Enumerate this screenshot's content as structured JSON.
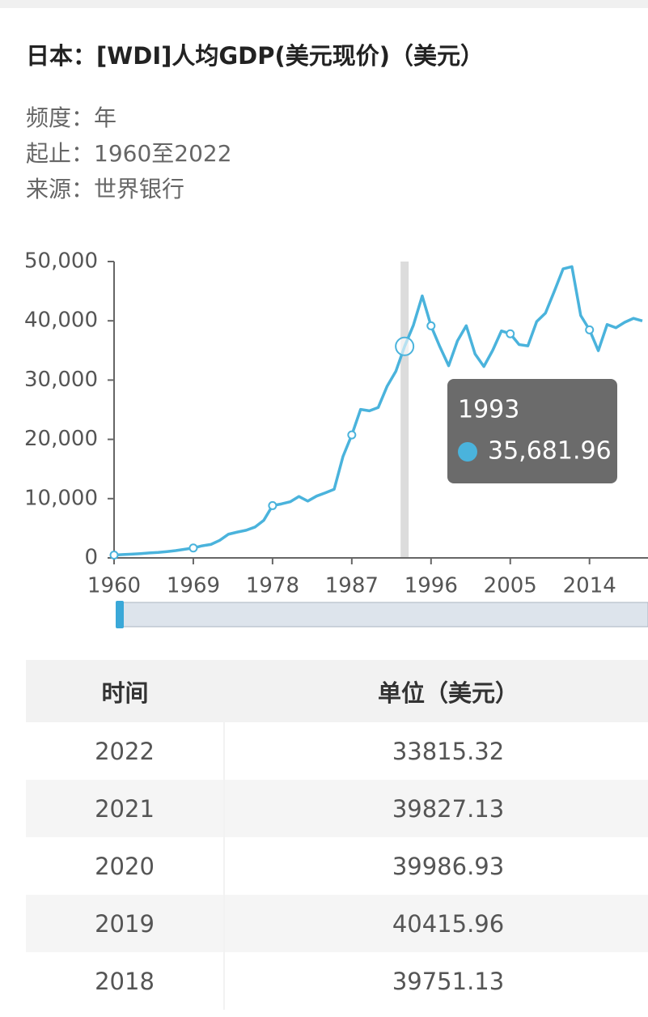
{
  "header": {
    "title": "日本：[WDI]人均GDP(美元现价)（美元）",
    "meta": [
      "频度：年",
      "起止：1960至2022",
      "来源：世界银行"
    ]
  },
  "chart_data": {
    "type": "line",
    "color": "#4ab3dc",
    "x": [
      1960,
      1961,
      1962,
      1963,
      1964,
      1965,
      1966,
      1967,
      1968,
      1969,
      1970,
      1971,
      1972,
      1973,
      1974,
      1975,
      1976,
      1977,
      1978,
      1979,
      1980,
      1981,
      1982,
      1983,
      1984,
      1985,
      1986,
      1987,
      1988,
      1989,
      1990,
      1991,
      1992,
      1993,
      1994,
      1995,
      1996,
      1997,
      1998,
      1999,
      2000,
      2001,
      2002,
      2003,
      2004,
      2005,
      2006,
      2007,
      2008,
      2009,
      2010,
      2011,
      2012,
      2013,
      2014,
      2015,
      2016,
      2017,
      2018,
      2019,
      2020
    ],
    "values": [
      479,
      563,
      633,
      718,
      835,
      919,
      1058,
      1229,
      1450,
      1669,
      2037,
      2272,
      2967,
      3997,
      4354,
      4659,
      5197,
      6335,
      8821,
      9105,
      9463,
      10361,
      9578,
      10425,
      10984,
      11585,
      17112,
      20745,
      25052,
      24813,
      25371,
      28925,
      31465,
      35681.96,
      39269,
      44198,
      39150,
      35636,
      32424,
      36610,
      39169,
      34406,
      32289,
      35007,
      38299,
      37813,
      35991,
      35779,
      39876,
      41309,
      44968,
      48760,
      49145,
      40898,
      38475,
      34961,
      39375,
      38834,
      39751.13,
      40415.96,
      39986.93
    ],
    "xlim": [
      1960,
      2020
    ],
    "xticks": [
      1960,
      1969,
      1978,
      1987,
      1996,
      2005,
      2014
    ],
    "ylim": [
      0,
      50000
    ],
    "yticks": [
      0,
      {
        "value": 10000,
        "label": "10,000"
      },
      {
        "value": 20000,
        "label": "20,000"
      },
      {
        "value": 30000,
        "label": "30,000"
      },
      {
        "value": 40000,
        "label": "40,000"
      },
      {
        "value": 50000,
        "label": "50,000"
      }
    ],
    "tooltip": {
      "x": 1993,
      "value": 35681.96,
      "value_label": "35,681.96"
    }
  },
  "table": {
    "columns": [
      "时间",
      "单位（美元）"
    ],
    "rows": [
      [
        2022,
        33815.32
      ],
      [
        2021,
        39827.13
      ],
      [
        2020,
        39986.93
      ],
      [
        2019,
        40415.96
      ],
      [
        2018,
        39751.13
      ]
    ]
  }
}
